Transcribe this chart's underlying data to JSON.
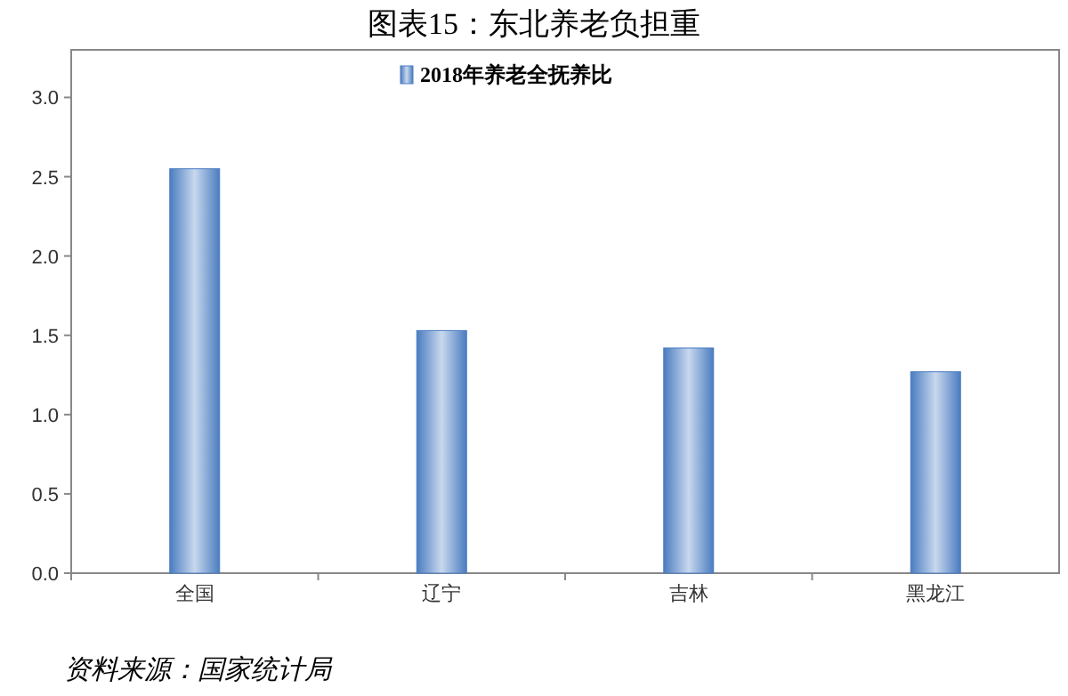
{
  "chart_data": {
    "type": "bar",
    "title": "图表15：东北养老负担重",
    "categories": [
      "全国",
      "辽宁",
      "吉林",
      "黑龙江"
    ],
    "series": [
      {
        "name": "2018年养老全抚养比",
        "color": "#4a7cc0",
        "values": [
          2.55,
          1.53,
          1.42,
          1.27
        ]
      }
    ],
    "ylim": [
      0,
      3.3
    ],
    "yticks": [
      {
        "value": 0,
        "label": "0.0"
      },
      {
        "value": 0.5,
        "label": "0.5"
      },
      {
        "value": 1,
        "label": "1.0"
      },
      {
        "value": 1.5,
        "label": "1.5"
      },
      {
        "value": 2,
        "label": "2.0"
      },
      {
        "value": 2.5,
        "label": "2.5"
      },
      {
        "value": 3,
        "label": "3.0"
      }
    ],
    "grid": false,
    "legend": "top",
    "annotations": [
      "资料来源：国家统计局"
    ]
  }
}
